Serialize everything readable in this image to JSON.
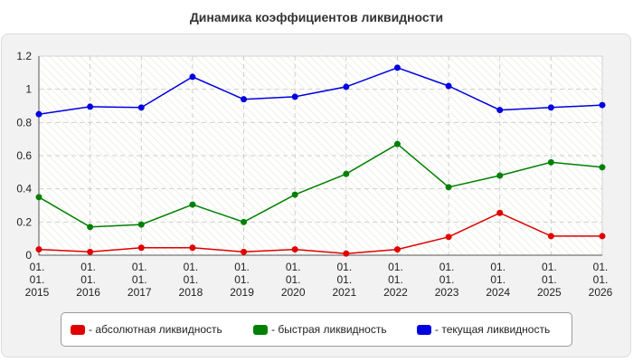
{
  "chart_data": {
    "type": "line",
    "title": "Динамика коэффициентов ликвидности",
    "xlabel": "",
    "ylabel": "",
    "ylim": [
      0,
      1.2
    ],
    "yticks": [
      "0",
      "0.2",
      "0.4",
      "0.6",
      "0.8",
      "1",
      "1.2"
    ],
    "grid": true,
    "legend_position": "bottom",
    "categories": [
      [
        "01.",
        "01.",
        "2015"
      ],
      [
        "01.",
        "01.",
        "2016"
      ],
      [
        "01.",
        "01.",
        "2017"
      ],
      [
        "01.",
        "01.",
        "2018"
      ],
      [
        "01.",
        "01.",
        "2019"
      ],
      [
        "01.",
        "01.",
        "2020"
      ],
      [
        "01.",
        "01.",
        "2021"
      ],
      [
        "01.",
        "01.",
        "2022"
      ],
      [
        "01.",
        "01.",
        "2023"
      ],
      [
        "01.",
        "01.",
        "2024"
      ],
      [
        "01.",
        "01.",
        "2025"
      ],
      [
        "01.",
        "01.",
        "2026"
      ]
    ],
    "series": [
      {
        "name": "- абсолютная ликвидность",
        "color": "#e00000",
        "values": [
          0.035,
          0.02,
          0.045,
          0.045,
          0.02,
          0.035,
          0.01,
          0.035,
          0.11,
          0.255,
          0.115,
          0.115
        ]
      },
      {
        "name": "- быстрая ликвидность",
        "color": "#008000",
        "values": [
          0.35,
          0.17,
          0.185,
          0.305,
          0.2,
          0.365,
          0.49,
          0.67,
          0.41,
          0.48,
          0.56,
          0.53
        ]
      },
      {
        "name": "- текущая ликвидность",
        "color": "#0000e0",
        "values": [
          0.85,
          0.895,
          0.89,
          1.075,
          0.94,
          0.955,
          1.015,
          1.13,
          1.02,
          0.875,
          0.89,
          0.905
        ]
      }
    ]
  }
}
